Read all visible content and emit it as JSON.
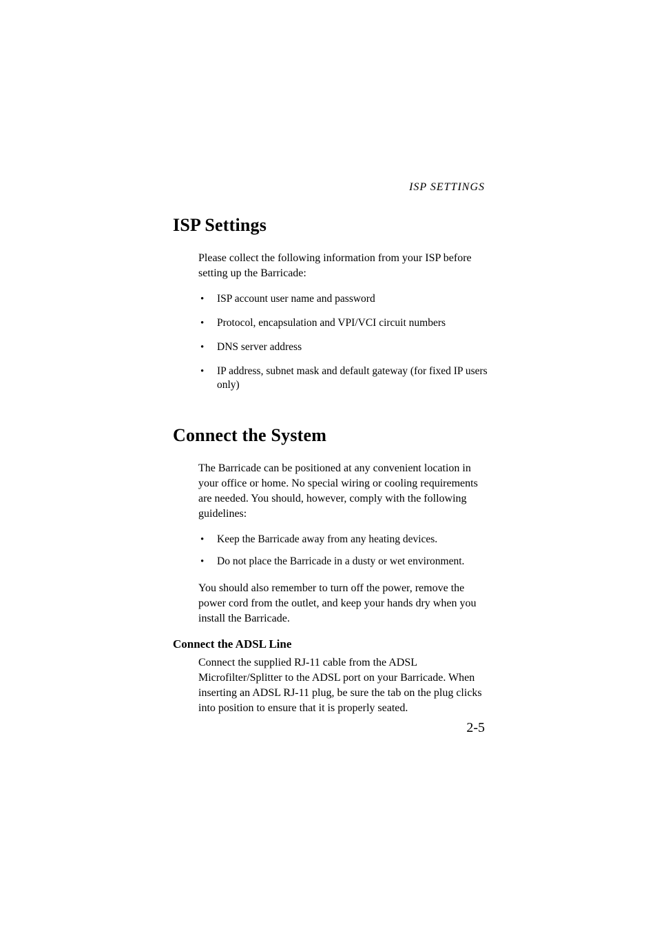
{
  "page": {
    "running_head": "ISP SETTINGS",
    "page_number": "2-5"
  },
  "sections": {
    "isp": {
      "title": "ISP Settings",
      "intro": "Please collect the following information from your ISP before setting up the Barricade:",
      "bullets": [
        "ISP account user name and password",
        "Protocol, encapsulation and VPI/VCI circuit numbers",
        "DNS server address",
        "IP address, subnet mask and default gateway (for fixed IP users only)"
      ]
    },
    "connect": {
      "title": "Connect the System",
      "intro": "The Barricade can be positioned at any convenient location in your office or home. No special wiring or cooling requirements are needed. You should, however, comply with the following guidelines:",
      "bullets": [
        "Keep the Barricade away from any heating devices.",
        "Do not place the Barricade in a dusty or wet environment."
      ],
      "outro": "You should also remember to turn off the power, remove the power cord from the outlet, and keep your hands dry when you install the Barricade.",
      "sub": {
        "title": "Connect the ADSL Line",
        "body": "Connect the supplied RJ-11 cable from the ADSL Microfilter/Splitter to the ADSL port on your Barricade. When inserting an ADSL RJ-11 plug, be sure the tab on the plug clicks into position to ensure that it is properly seated."
      }
    }
  }
}
